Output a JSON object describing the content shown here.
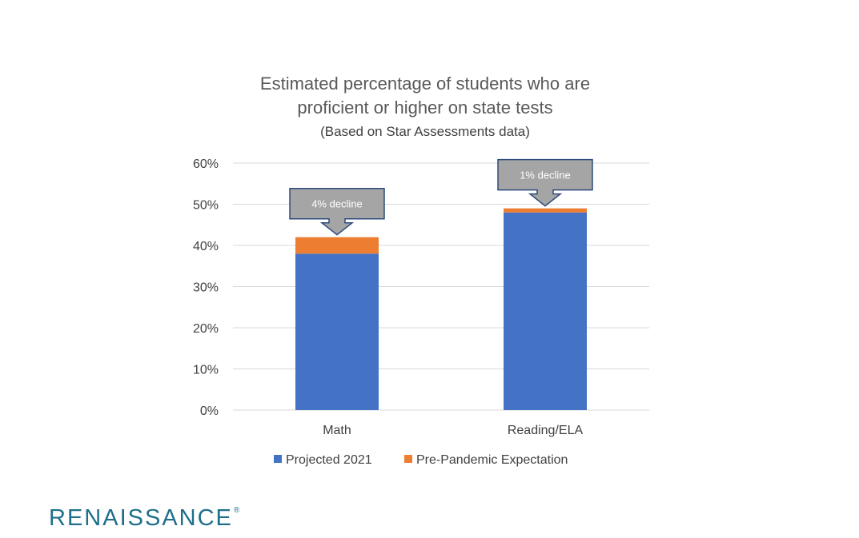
{
  "chart_data": {
    "type": "bar",
    "stacked": true,
    "title": "Estimated percentage of students who are proficient or higher on state tests",
    "title_lines": [
      "Estimated percentage of students who are",
      "proficient or higher on state tests"
    ],
    "subtitle": "(Based on Star Assessments data)",
    "categories": [
      "Math",
      "Reading/ELA"
    ],
    "series": [
      {
        "name": "Projected 2021",
        "values": [
          38,
          48
        ],
        "color": "#4472c4"
      },
      {
        "name": "Pre-Pandemic Expectation",
        "values": [
          4,
          1
        ],
        "color": "#ed7d31"
      }
    ],
    "ylim": [
      0,
      60
    ],
    "yticks": [
      0,
      10,
      20,
      30,
      40,
      50,
      60
    ],
    "ytick_labels": [
      "0%",
      "10%",
      "20%",
      "30%",
      "40%",
      "50%",
      "60%"
    ],
    "grid": true,
    "legend": "bottom",
    "annotations": [
      {
        "category": "Math",
        "text": "4% decline"
      },
      {
        "category": "Reading/ELA",
        "text": "1% decline"
      }
    ]
  },
  "branding": {
    "logo_text": "RENAISSANCE",
    "logo_mark": "®",
    "logo_color": "#1f6f8b"
  },
  "colors": {
    "gridline": "#d9d9d9",
    "callout_fill": "#a5a5a5",
    "callout_border": "#2f4b7c"
  }
}
